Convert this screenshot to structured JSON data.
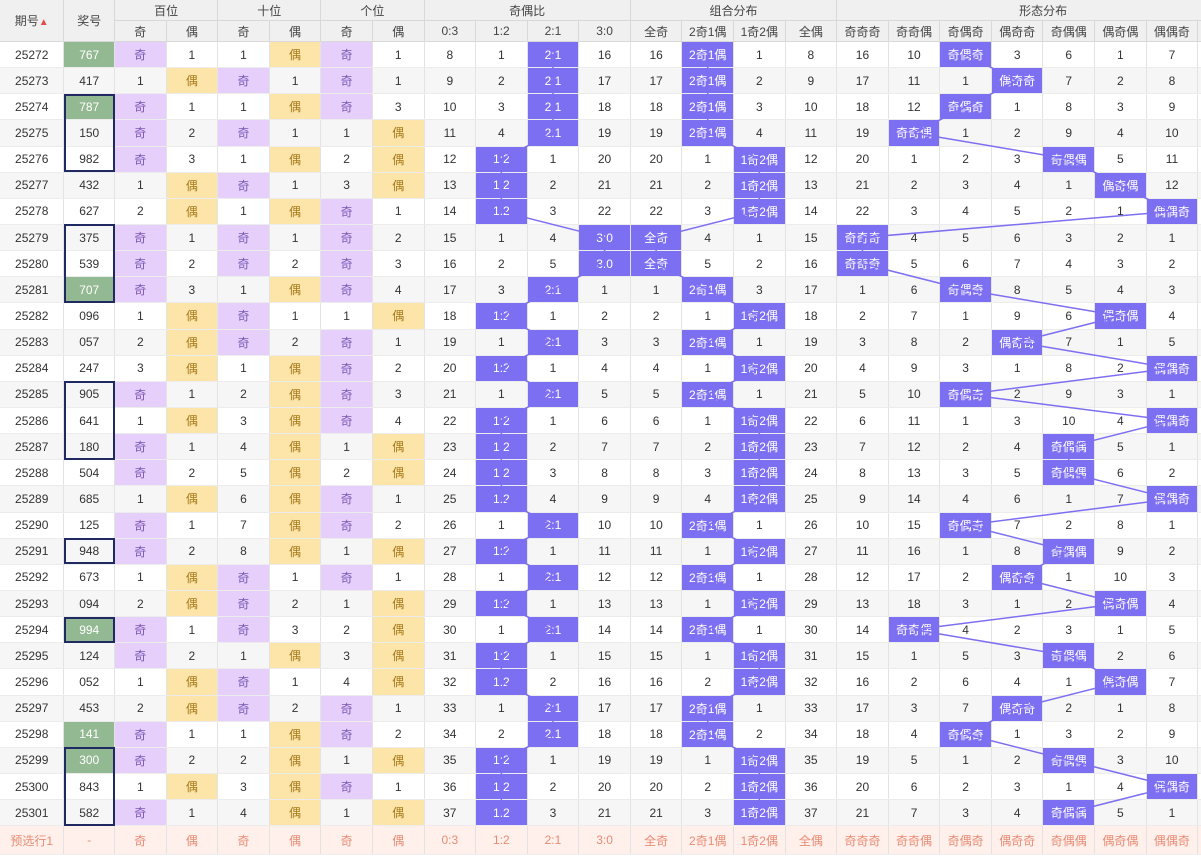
{
  "headers": {
    "issue": "期号",
    "sort_icon": "▲",
    "number": "奖号",
    "groups": [
      "百位",
      "十位",
      "个位",
      "奇偶比",
      "组合分布",
      "形态分布"
    ],
    "bai": [
      "奇",
      "偶"
    ],
    "shi": [
      "奇",
      "偶"
    ],
    "ge": [
      "奇",
      "偶"
    ],
    "ratio": [
      "0:3",
      "1:2",
      "2:1",
      "3:0"
    ],
    "combo": [
      "全奇",
      "2奇1偶",
      "1奇2偶",
      "全偶"
    ],
    "shape": [
      "奇奇奇",
      "奇奇偶",
      "奇偶奇",
      "偶奇奇",
      "奇偶偶",
      "偶奇偶",
      "偶偶奇",
      "偶偶偶"
    ]
  },
  "rows": [
    {
      "issue": "25272",
      "num": "767",
      "green": true,
      "bai": [
        "奇",
        "1"
      ],
      "shi": [
        "1",
        "偶"
      ],
      "ge": [
        "奇",
        "1"
      ],
      "ratio": [
        "8",
        "1",
        "2:1",
        "16"
      ],
      "combo": [
        "16",
        "2奇1偶",
        "1",
        "8"
      ],
      "shape": [
        "16",
        "10",
        "奇偶奇",
        "3",
        "6",
        "1",
        "7",
        "8"
      ]
    },
    {
      "issue": "25273",
      "num": "417",
      "green": false,
      "bai": [
        "1",
        "偶"
      ],
      "shi": [
        "奇",
        "1"
      ],
      "ge": [
        "奇",
        "1"
      ],
      "ratio": [
        "9",
        "2",
        "2:1",
        "17"
      ],
      "combo": [
        "17",
        "2奇1偶",
        "2",
        "9"
      ],
      "shape": [
        "17",
        "11",
        "1",
        "偶奇奇",
        "7",
        "2",
        "8",
        "9"
      ]
    },
    {
      "issue": "25274",
      "num": "787",
      "green": true,
      "bai": [
        "奇",
        "1"
      ],
      "shi": [
        "1",
        "偶"
      ],
      "ge": [
        "奇",
        "3"
      ],
      "ratio": [
        "10",
        "3",
        "2:1",
        "18"
      ],
      "combo": [
        "18",
        "2奇1偶",
        "3",
        "10"
      ],
      "shape": [
        "18",
        "12",
        "奇偶奇",
        "1",
        "8",
        "3",
        "9",
        "10"
      ]
    },
    {
      "issue": "25275",
      "num": "150",
      "green": false,
      "bai": [
        "奇",
        "2"
      ],
      "shi": [
        "奇",
        "1"
      ],
      "ge": [
        "1",
        "偶"
      ],
      "ratio": [
        "11",
        "4",
        "2:1",
        "19"
      ],
      "combo": [
        "19",
        "2奇1偶",
        "4",
        "11"
      ],
      "shape": [
        "19",
        "奇奇偶",
        "1",
        "2",
        "9",
        "4",
        "10",
        "11"
      ]
    },
    {
      "issue": "25276",
      "num": "982",
      "green": false,
      "bai": [
        "奇",
        "3"
      ],
      "shi": [
        "1",
        "偶"
      ],
      "ge": [
        "2",
        "偶"
      ],
      "ratio": [
        "12",
        "1:2",
        "1",
        "20"
      ],
      "combo": [
        "20",
        "1",
        "1奇2偶",
        "12"
      ],
      "shape": [
        "20",
        "1",
        "2",
        "3",
        "奇偶偶",
        "5",
        "11",
        "12"
      ]
    },
    {
      "issue": "25277",
      "num": "432",
      "green": false,
      "bai": [
        "1",
        "偶"
      ],
      "shi": [
        "奇",
        "1"
      ],
      "ge": [
        "3",
        "偶"
      ],
      "ratio": [
        "13",
        "1:2",
        "2",
        "21"
      ],
      "combo": [
        "21",
        "2",
        "1奇2偶",
        "13"
      ],
      "shape": [
        "21",
        "2",
        "3",
        "4",
        "1",
        "偶奇偶",
        "12",
        "13"
      ]
    },
    {
      "issue": "25278",
      "num": "627",
      "green": false,
      "bai": [
        "2",
        "偶"
      ],
      "shi": [
        "1",
        "偶"
      ],
      "ge": [
        "奇",
        "1"
      ],
      "ratio": [
        "14",
        "1:2",
        "3",
        "22"
      ],
      "combo": [
        "22",
        "3",
        "1奇2偶",
        "14"
      ],
      "shape": [
        "22",
        "3",
        "4",
        "5",
        "2",
        "1",
        "偶偶奇",
        "14"
      ]
    },
    {
      "issue": "25279",
      "num": "375",
      "green": false,
      "bai": [
        "奇",
        "1"
      ],
      "shi": [
        "奇",
        "1"
      ],
      "ge": [
        "奇",
        "2"
      ],
      "ratio": [
        "15",
        "1",
        "4",
        "3:0"
      ],
      "combo": [
        "全奇",
        "4",
        "1",
        "15"
      ],
      "shape": [
        "奇奇奇",
        "4",
        "5",
        "6",
        "3",
        "2",
        "1",
        "15"
      ]
    },
    {
      "issue": "25280",
      "num": "539",
      "green": false,
      "bai": [
        "奇",
        "2"
      ],
      "shi": [
        "奇",
        "2"
      ],
      "ge": [
        "奇",
        "3"
      ],
      "ratio": [
        "16",
        "2",
        "5",
        "3:0"
      ],
      "combo": [
        "全奇",
        "5",
        "2",
        "16"
      ],
      "shape": [
        "奇奇奇",
        "5",
        "6",
        "7",
        "4",
        "3",
        "2",
        "16"
      ]
    },
    {
      "issue": "25281",
      "num": "707",
      "green": true,
      "bai": [
        "奇",
        "3"
      ],
      "shi": [
        "1",
        "偶"
      ],
      "ge": [
        "奇",
        "4"
      ],
      "ratio": [
        "17",
        "3",
        "2:1",
        "1"
      ],
      "combo": [
        "1",
        "2奇1偶",
        "3",
        "17"
      ],
      "shape": [
        "1",
        "6",
        "奇偶奇",
        "8",
        "5",
        "4",
        "3",
        "17"
      ]
    },
    {
      "issue": "25282",
      "num": "096",
      "green": false,
      "bai": [
        "1",
        "偶"
      ],
      "shi": [
        "奇",
        "1"
      ],
      "ge": [
        "1",
        "偶"
      ],
      "ratio": [
        "18",
        "1:2",
        "1",
        "2"
      ],
      "combo": [
        "2",
        "1",
        "1奇2偶",
        "18"
      ],
      "shape": [
        "2",
        "7",
        "1",
        "9",
        "6",
        "偶奇偶",
        "4",
        "18"
      ]
    },
    {
      "issue": "25283",
      "num": "057",
      "green": false,
      "bai": [
        "2",
        "偶"
      ],
      "shi": [
        "奇",
        "2"
      ],
      "ge": [
        "奇",
        "1"
      ],
      "ratio": [
        "19",
        "1",
        "2:1",
        "3"
      ],
      "combo": [
        "3",
        "2奇1偶",
        "1",
        "19"
      ],
      "shape": [
        "3",
        "8",
        "2",
        "偶奇奇",
        "7",
        "1",
        "5",
        "19"
      ]
    },
    {
      "issue": "25284",
      "num": "247",
      "green": false,
      "bai": [
        "3",
        "偶"
      ],
      "shi": [
        "1",
        "偶"
      ],
      "ge": [
        "奇",
        "2"
      ],
      "ratio": [
        "20",
        "1:2",
        "1",
        "4"
      ],
      "combo": [
        "4",
        "1",
        "1奇2偶",
        "20"
      ],
      "shape": [
        "4",
        "9",
        "3",
        "1",
        "8",
        "2",
        "偶偶奇",
        "20"
      ]
    },
    {
      "issue": "25285",
      "num": "905",
      "green": false,
      "bai": [
        "奇",
        "1"
      ],
      "shi": [
        "2",
        "偶"
      ],
      "ge": [
        "奇",
        "3"
      ],
      "ratio": [
        "21",
        "1",
        "2:1",
        "5"
      ],
      "combo": [
        "5",
        "2奇1偶",
        "1",
        "21"
      ],
      "shape": [
        "5",
        "10",
        "奇偶奇",
        "2",
        "9",
        "3",
        "1",
        "21"
      ]
    },
    {
      "issue": "25286",
      "num": "641",
      "green": false,
      "bai": [
        "1",
        "偶"
      ],
      "shi": [
        "3",
        "偶"
      ],
      "ge": [
        "奇",
        "4"
      ],
      "ratio": [
        "22",
        "1:2",
        "1",
        "6"
      ],
      "combo": [
        "6",
        "1",
        "1奇2偶",
        "22"
      ],
      "shape": [
        "6",
        "11",
        "1",
        "3",
        "10",
        "4",
        "偶偶奇",
        "22"
      ]
    },
    {
      "issue": "25287",
      "num": "180",
      "green": false,
      "bai": [
        "奇",
        "1"
      ],
      "shi": [
        "4",
        "偶"
      ],
      "ge": [
        "1",
        "偶"
      ],
      "ratio": [
        "23",
        "1:2",
        "2",
        "7"
      ],
      "combo": [
        "7",
        "2",
        "1奇2偶",
        "23"
      ],
      "shape": [
        "7",
        "12",
        "2",
        "4",
        "奇偶偶",
        "5",
        "1",
        "23"
      ]
    },
    {
      "issue": "25288",
      "num": "504",
      "green": false,
      "bai": [
        "奇",
        "2"
      ],
      "shi": [
        "5",
        "偶"
      ],
      "ge": [
        "2",
        "偶"
      ],
      "ratio": [
        "24",
        "1:2",
        "3",
        "8"
      ],
      "combo": [
        "8",
        "3",
        "1奇2偶",
        "24"
      ],
      "shape": [
        "8",
        "13",
        "3",
        "5",
        "奇偶偶",
        "6",
        "2",
        "24"
      ]
    },
    {
      "issue": "25289",
      "num": "685",
      "green": false,
      "bai": [
        "1",
        "偶"
      ],
      "shi": [
        "6",
        "偶"
      ],
      "ge": [
        "奇",
        "1"
      ],
      "ratio": [
        "25",
        "1:2",
        "4",
        "9"
      ],
      "combo": [
        "9",
        "4",
        "1奇2偶",
        "25"
      ],
      "shape": [
        "9",
        "14",
        "4",
        "6",
        "1",
        "7",
        "偶偶奇",
        "25"
      ]
    },
    {
      "issue": "25290",
      "num": "125",
      "green": false,
      "bai": [
        "奇",
        "1"
      ],
      "shi": [
        "7",
        "偶"
      ],
      "ge": [
        "奇",
        "2"
      ],
      "ratio": [
        "26",
        "1",
        "2:1",
        "10"
      ],
      "combo": [
        "10",
        "2奇1偶",
        "1",
        "26"
      ],
      "shape": [
        "10",
        "15",
        "奇偶奇",
        "7",
        "2",
        "8",
        "1",
        "26"
      ]
    },
    {
      "issue": "25291",
      "num": "948",
      "green": false,
      "bai": [
        "奇",
        "2"
      ],
      "shi": [
        "8",
        "偶"
      ],
      "ge": [
        "1",
        "偶"
      ],
      "ratio": [
        "27",
        "1:2",
        "1",
        "11"
      ],
      "combo": [
        "11",
        "1",
        "1奇2偶",
        "27"
      ],
      "shape": [
        "11",
        "16",
        "1",
        "8",
        "奇偶偶",
        "9",
        "2",
        "27"
      ]
    },
    {
      "issue": "25292",
      "num": "673",
      "green": false,
      "bai": [
        "1",
        "偶"
      ],
      "shi": [
        "奇",
        "1"
      ],
      "ge": [
        "奇",
        "1"
      ],
      "ratio": [
        "28",
        "1",
        "2:1",
        "12"
      ],
      "combo": [
        "12",
        "2奇1偶",
        "1",
        "28"
      ],
      "shape": [
        "12",
        "17",
        "2",
        "偶奇奇",
        "1",
        "10",
        "3",
        "28"
      ]
    },
    {
      "issue": "25293",
      "num": "094",
      "green": false,
      "bai": [
        "2",
        "偶"
      ],
      "shi": [
        "奇",
        "2"
      ],
      "ge": [
        "1",
        "偶"
      ],
      "ratio": [
        "29",
        "1:2",
        "1",
        "13"
      ],
      "combo": [
        "13",
        "1",
        "1奇2偶",
        "29"
      ],
      "shape": [
        "13",
        "18",
        "3",
        "1",
        "2",
        "偶奇偶",
        "4",
        "29"
      ]
    },
    {
      "issue": "25294",
      "num": "994",
      "green": true,
      "bai": [
        "奇",
        "1"
      ],
      "shi": [
        "奇",
        "3"
      ],
      "ge": [
        "2",
        "偶"
      ],
      "ratio": [
        "30",
        "1",
        "2:1",
        "14"
      ],
      "combo": [
        "14",
        "2奇1偶",
        "1",
        "30"
      ],
      "shape": [
        "14",
        "奇奇偶",
        "4",
        "2",
        "3",
        "1",
        "5",
        "30"
      ]
    },
    {
      "issue": "25295",
      "num": "124",
      "green": false,
      "bai": [
        "奇",
        "2"
      ],
      "shi": [
        "1",
        "偶"
      ],
      "ge": [
        "3",
        "偶"
      ],
      "ratio": [
        "31",
        "1:2",
        "1",
        "15"
      ],
      "combo": [
        "15",
        "1",
        "1奇2偶",
        "31"
      ],
      "shape": [
        "15",
        "1",
        "5",
        "3",
        "奇偶偶",
        "2",
        "6",
        "31"
      ]
    },
    {
      "issue": "25296",
      "num": "052",
      "green": false,
      "bai": [
        "1",
        "偶"
      ],
      "shi": [
        "奇",
        "1"
      ],
      "ge": [
        "4",
        "偶"
      ],
      "ratio": [
        "32",
        "1:2",
        "2",
        "16"
      ],
      "combo": [
        "16",
        "2",
        "1奇2偶",
        "32"
      ],
      "shape": [
        "16",
        "2",
        "6",
        "4",
        "1",
        "偶奇偶",
        "7",
        "32"
      ]
    },
    {
      "issue": "25297",
      "num": "453",
      "green": false,
      "bai": [
        "2",
        "偶"
      ],
      "shi": [
        "奇",
        "2"
      ],
      "ge": [
        "奇",
        "1"
      ],
      "ratio": [
        "33",
        "1",
        "2:1",
        "17"
      ],
      "combo": [
        "17",
        "2奇1偶",
        "1",
        "33"
      ],
      "shape": [
        "17",
        "3",
        "7",
        "偶奇奇",
        "2",
        "1",
        "8",
        "33"
      ]
    },
    {
      "issue": "25298",
      "num": "141",
      "green": true,
      "bai": [
        "奇",
        "1"
      ],
      "shi": [
        "1",
        "偶"
      ],
      "ge": [
        "奇",
        "2"
      ],
      "ratio": [
        "34",
        "2",
        "2:1",
        "18"
      ],
      "combo": [
        "18",
        "2奇1偶",
        "2",
        "34"
      ],
      "shape": [
        "18",
        "4",
        "奇偶奇",
        "1",
        "3",
        "2",
        "9",
        "34"
      ]
    },
    {
      "issue": "25299",
      "num": "300",
      "green": true,
      "bai": [
        "奇",
        "2"
      ],
      "shi": [
        "2",
        "偶"
      ],
      "ge": [
        "1",
        "偶"
      ],
      "ratio": [
        "35",
        "1:2",
        "1",
        "19"
      ],
      "combo": [
        "19",
        "1",
        "1奇2偶",
        "35"
      ],
      "shape": [
        "19",
        "5",
        "1",
        "2",
        "奇偶偶",
        "3",
        "10",
        "35"
      ]
    },
    {
      "issue": "25300",
      "num": "843",
      "green": false,
      "bai": [
        "1",
        "偶"
      ],
      "shi": [
        "3",
        "偶"
      ],
      "ge": [
        "奇",
        "1"
      ],
      "ratio": [
        "36",
        "1:2",
        "2",
        "20"
      ],
      "combo": [
        "20",
        "2",
        "1奇2偶",
        "36"
      ],
      "shape": [
        "20",
        "6",
        "2",
        "3",
        "1",
        "4",
        "偶偶奇",
        "36"
      ]
    },
    {
      "issue": "25301",
      "num": "582",
      "green": false,
      "bai": [
        "奇",
        "1"
      ],
      "shi": [
        "4",
        "偶"
      ],
      "ge": [
        "1",
        "偶"
      ],
      "ratio": [
        "37",
        "1:2",
        "3",
        "21"
      ],
      "combo": [
        "21",
        "3",
        "1奇2偶",
        "37"
      ],
      "shape": [
        "21",
        "7",
        "3",
        "4",
        "奇偶偶",
        "5",
        "1",
        "37"
      ]
    }
  ],
  "footer": {
    "label": "预选行1",
    "num": "-",
    "cells": [
      "奇",
      "偶",
      "奇",
      "偶",
      "奇",
      "偶",
      "0:3",
      "1:2",
      "2:1",
      "3:0",
      "全奇",
      "2奇1偶",
      "1奇2偶",
      "全偶",
      "奇奇奇",
      "奇奇偶",
      "奇偶奇",
      "偶奇奇",
      "奇偶偶",
      "偶奇偶",
      "偶偶奇",
      "偶偶偶"
    ]
  },
  "chart_data": {
    "type": "table",
    "columns": [
      "期号",
      "奖号"
    ],
    "x": [
      "25272",
      "25273",
      "25274",
      "25275",
      "25276",
      "25277",
      "25278",
      "25279",
      "25280",
      "25281",
      "25282",
      "25283",
      "25284",
      "25285",
      "25286",
      "25287",
      "25288",
      "25289",
      "25290",
      "25291",
      "25292",
      "25293",
      "25294",
      "25295",
      "25296",
      "25297",
      "25298",
      "25299",
      "25300",
      "25301"
    ],
    "values": [
      "767",
      "417",
      "787",
      "150",
      "982",
      "432",
      "627",
      "375",
      "539",
      "707",
      "096",
      "057",
      "247",
      "905",
      "641",
      "180",
      "504",
      "685",
      "125",
      "948",
      "673",
      "094",
      "994",
      "124",
      "052",
      "453",
      "141",
      "300",
      "843",
      "582"
    ],
    "boxed_groups": [
      [
        "25274",
        "25276"
      ],
      [
        "25279",
        "25281"
      ],
      [
        "25285",
        "25287"
      ],
      [
        "25291",
        "25291"
      ],
      [
        "25294",
        "25294"
      ],
      [
        "25299",
        "25301"
      ]
    ],
    "line_series": [
      "奇偶比",
      "组合分布",
      "形态分布"
    ]
  }
}
